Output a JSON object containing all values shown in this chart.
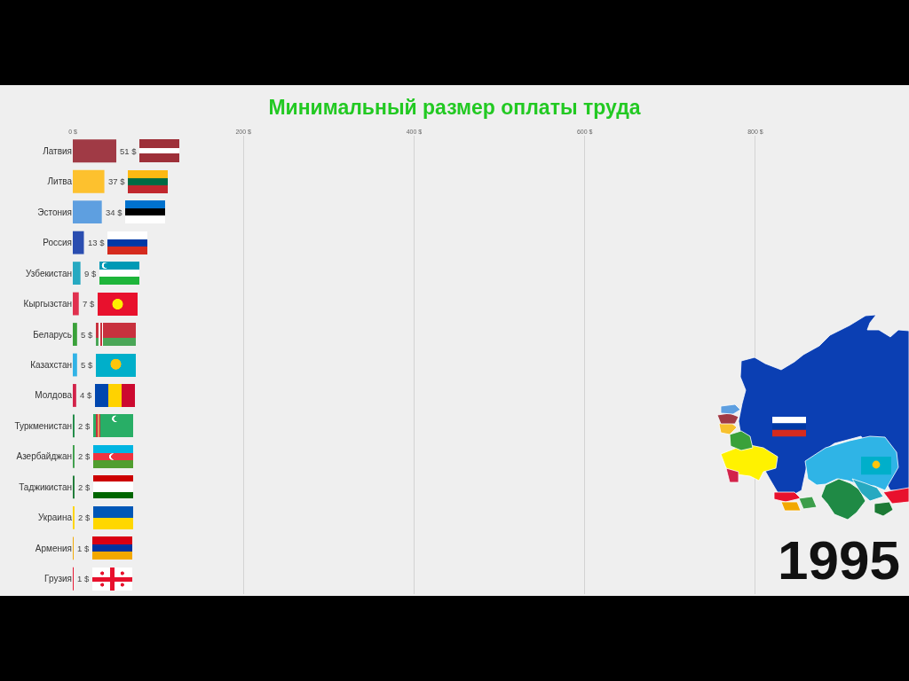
{
  "chart_data": {
    "type": "bar",
    "orientation": "horizontal",
    "title": "Минимальный размер оплаты труда",
    "categories": [
      "Латвия",
      "Литва",
      "Эстония",
      "Россия",
      "Узбекистан",
      "Кыргызстан",
      "Беларусь",
      "Казахстан",
      "Молдова",
      "Туркменистан",
      "Азербайджан",
      "Таджикистан",
      "Украина",
      "Армения",
      "Грузия"
    ],
    "values": [
      51,
      37,
      34,
      13,
      9,
      7,
      5,
      5,
      4,
      2,
      2,
      2,
      2,
      1,
      1
    ],
    "colors": [
      "#a03a45",
      "#fdc12e",
      "#5e9fe0",
      "#2a4db0",
      "#27a9c1",
      "#e0304e",
      "#3aa13a",
      "#31b3e6",
      "#d2234a",
      "#1e8a45",
      "#3c9e4a",
      "#1c7a35",
      "#ffd500",
      "#f2a800",
      "#e8112d"
    ],
    "value_labels": [
      "51 $",
      "37 $",
      "34 $",
      "13 $",
      "9 $",
      "7 $",
      "5 $",
      "5 $",
      "4 $",
      "2 $",
      "2 $",
      "2 $",
      "2 $",
      "1 $",
      "1 $"
    ],
    "xlim": [
      0,
      980
    ],
    "xticks": [
      {
        "value": 0,
        "label": "0 $"
      },
      {
        "value": 200,
        "label": "200 $"
      },
      {
        "value": 400,
        "label": "400 $"
      },
      {
        "value": 600,
        "label": "600 $"
      },
      {
        "value": 800,
        "label": "800 $"
      }
    ],
    "grid": "x",
    "annotations": [
      "1995"
    ]
  }
}
